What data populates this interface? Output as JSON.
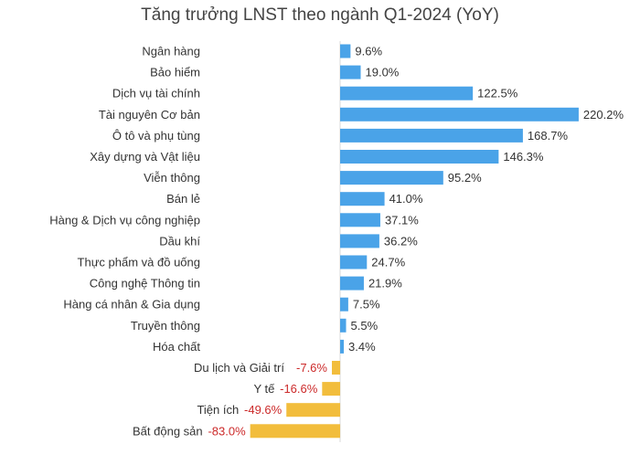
{
  "chart_data": {
    "type": "bar",
    "orientation": "horizontal",
    "title": "Tăng trưởng LNST theo ngành Q1-2024 (YoY)",
    "xlabel": "",
    "ylabel": "",
    "grid": false,
    "value_suffix": "%",
    "categories": [
      "Ngân hàng",
      "Bảo hiểm",
      "Dịch vụ tài chính",
      "Tài nguyên Cơ bản",
      "Ô tô và phụ tùng",
      "Xây dựng và Vật liệu",
      "Viễn thông",
      "Bán lẻ",
      "Hàng & Dịch vụ công nghiệp",
      "Dầu khí",
      "Thực phẩm và đồ uống",
      "Công nghệ Thông tin",
      "Hàng cá nhân & Gia dụng",
      "Truyền thông",
      "Hóa chất",
      "Du lịch và Giải trí",
      "Y tế",
      "Tiện ích",
      "Bất động sản"
    ],
    "values": [
      9.6,
      19.0,
      122.5,
      220.2,
      168.7,
      146.3,
      95.2,
      41.0,
      37.1,
      36.2,
      24.7,
      21.9,
      7.5,
      5.5,
      3.4,
      -7.6,
      -16.6,
      -49.6,
      -83.0
    ],
    "value_labels": [
      "9.6%",
      "19.0%",
      "122.5%",
      "220.2%",
      "168.7%",
      "146.3%",
      "95.2%",
      "41.0%",
      "37.1%",
      "36.2%",
      "24.7%",
      "21.9%",
      "7.5%",
      "5.5%",
      "3.4%",
      "-7.6%",
      "-16.6%",
      "-49.6%",
      "-83.0%"
    ],
    "colors": {
      "positive_bar": "#4aa3e8",
      "negative_bar": "#f2bd3c",
      "positive_label": "#333333",
      "negative_label": "#cc2a2a",
      "axis": "#d9d9d9"
    }
  }
}
